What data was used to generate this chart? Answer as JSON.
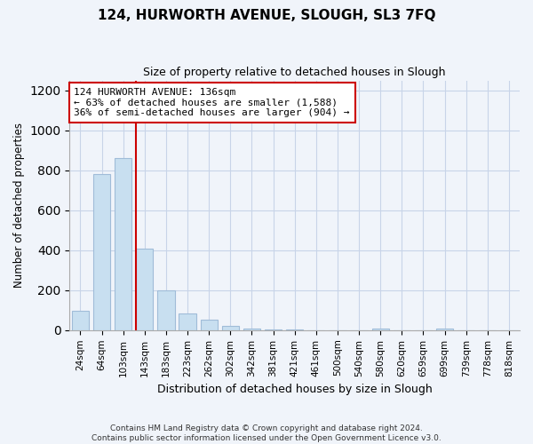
{
  "title": "124, HURWORTH AVENUE, SLOUGH, SL3 7FQ",
  "subtitle": "Size of property relative to detached houses in Slough",
  "xlabel": "Distribution of detached houses by size in Slough",
  "ylabel": "Number of detached properties",
  "footer_line1": "Contains HM Land Registry data © Crown copyright and database right 2024.",
  "footer_line2": "Contains public sector information licensed under the Open Government Licence v3.0.",
  "categories": [
    "24sqm",
    "64sqm",
    "103sqm",
    "143sqm",
    "183sqm",
    "223sqm",
    "262sqm",
    "302sqm",
    "342sqm",
    "381sqm",
    "421sqm",
    "461sqm",
    "500sqm",
    "540sqm",
    "580sqm",
    "620sqm",
    "659sqm",
    "699sqm",
    "739sqm",
    "778sqm",
    "818sqm"
  ],
  "values": [
    95,
    780,
    860,
    410,
    200,
    85,
    53,
    22,
    8,
    3,
    2,
    0,
    0,
    0,
    10,
    0,
    0,
    10,
    0,
    0,
    0
  ],
  "bar_color": "#c8dff0",
  "bar_edge_color": "#a0bcd8",
  "marker_index": 3,
  "marker_color": "#cc0000",
  "ylim": [
    0,
    1250
  ],
  "yticks": [
    0,
    200,
    400,
    600,
    800,
    1000,
    1200
  ],
  "annotation_title": "124 HURWORTH AVENUE: 136sqm",
  "annotation_line1": "← 63% of detached houses are smaller (1,588)",
  "annotation_line2": "36% of semi-detached houses are larger (904) →",
  "annotation_box_color": "#ffffff",
  "annotation_box_edgecolor": "#cc0000",
  "bg_color": "#f0f4fa",
  "figsize": [
    6.0,
    5.0
  ],
  "dpi": 100
}
